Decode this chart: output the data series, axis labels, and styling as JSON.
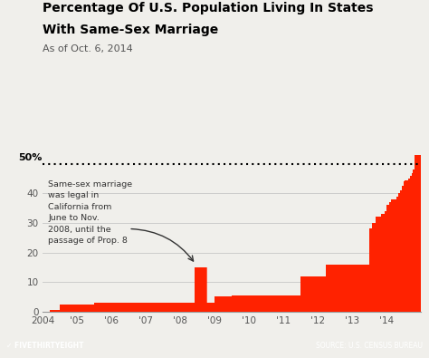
{
  "title_line1": "Percentage Of U.S. Population Living In States",
  "title_line2": "With Same-Sex Marriage",
  "subtitle": "As of Oct. 6, 2014",
  "bar_color": "#FF2200",
  "bg_color": "#F0EFEB",
  "footer_bg": "#636363",
  "dotted_line_y": 50,
  "source_text": "SOURCE: U.S. CENSUS BUREAU",
  "brand_text": "FIVETHIRTYEIGHT",
  "annotation_text": "Same-sex marriage\nwas legal in\nCalifornia from\nJune to Nov.\n2008, until the\npassage of Prop. 8",
  "steps": [
    {
      "date": 2004.0,
      "value": 0.0
    },
    {
      "date": 2004.2,
      "value": 0.5
    },
    {
      "date": 2004.5,
      "value": 2.5
    },
    {
      "date": 2005.0,
      "value": 2.5
    },
    {
      "date": 2005.5,
      "value": 3.0
    },
    {
      "date": 2006.0,
      "value": 3.0
    },
    {
      "date": 2007.0,
      "value": 3.0
    },
    {
      "date": 2008.0,
      "value": 3.0
    },
    {
      "date": 2008.42,
      "value": 15.0
    },
    {
      "date": 2008.75,
      "value": 3.0
    },
    {
      "date": 2009.0,
      "value": 5.0
    },
    {
      "date": 2009.5,
      "value": 5.5
    },
    {
      "date": 2010.0,
      "value": 5.5
    },
    {
      "date": 2011.0,
      "value": 5.5
    },
    {
      "date": 2011.5,
      "value": 12.0
    },
    {
      "date": 2012.0,
      "value": 12.0
    },
    {
      "date": 2012.25,
      "value": 16.0
    },
    {
      "date": 2013.0,
      "value": 16.0
    },
    {
      "date": 2013.5,
      "value": 28.0
    },
    {
      "date": 2013.6,
      "value": 30.0
    },
    {
      "date": 2013.7,
      "value": 32.0
    },
    {
      "date": 2013.85,
      "value": 33.0
    },
    {
      "date": 2013.95,
      "value": 34.0
    },
    {
      "date": 2014.0,
      "value": 36.0
    },
    {
      "date": 2014.1,
      "value": 37.0
    },
    {
      "date": 2014.15,
      "value": 38.0
    },
    {
      "date": 2014.25,
      "value": 38.0
    },
    {
      "date": 2014.3,
      "value": 39.0
    },
    {
      "date": 2014.35,
      "value": 40.0
    },
    {
      "date": 2014.4,
      "value": 41.0
    },
    {
      "date": 2014.45,
      "value": 42.5
    },
    {
      "date": 2014.5,
      "value": 44.0
    },
    {
      "date": 2014.55,
      "value": 44.5
    },
    {
      "date": 2014.6,
      "value": 44.5
    },
    {
      "date": 2014.65,
      "value": 45.0
    },
    {
      "date": 2014.7,
      "value": 46.0
    },
    {
      "date": 2014.75,
      "value": 47.0
    },
    {
      "date": 2014.78,
      "value": 48.0
    },
    {
      "date": 2014.82,
      "value": 53.0
    },
    {
      "date": 2014.95,
      "value": 53.0
    },
    {
      "date": 2015.0,
      "value": 53.0
    }
  ],
  "xlim": [
    2004.0,
    2015.0
  ],
  "ylim": [
    0,
    57
  ],
  "xtick_positions": [
    2004,
    2005,
    2006,
    2007,
    2008,
    2009,
    2010,
    2011,
    2012,
    2013,
    2014
  ],
  "xtick_labels": [
    "2004",
    "'05",
    "'06",
    "'07",
    "'08",
    "'09",
    "'10",
    "'11",
    "'12",
    "'13",
    "'14"
  ]
}
